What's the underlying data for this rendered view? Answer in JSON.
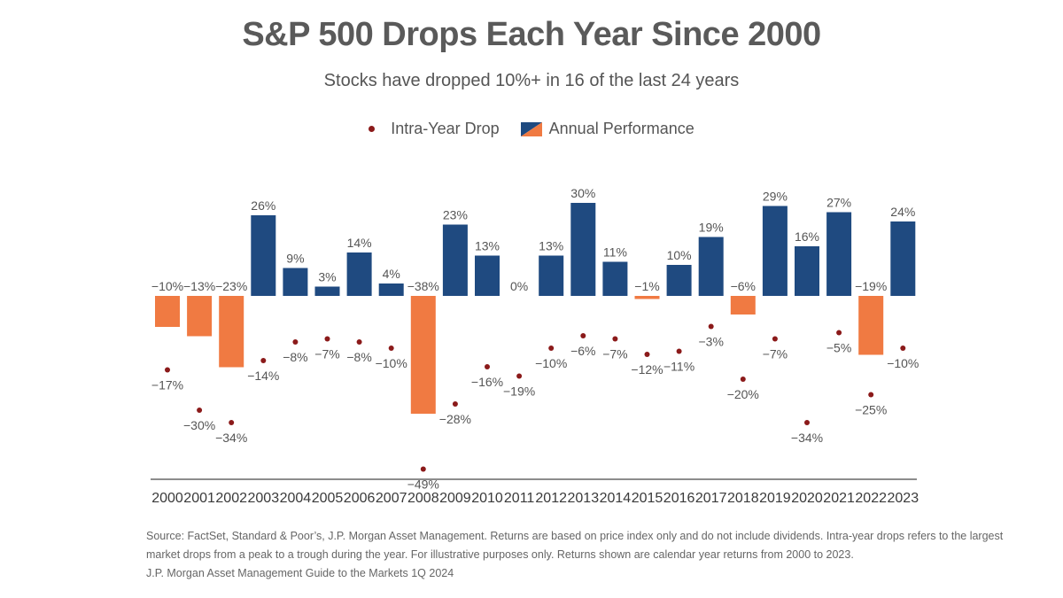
{
  "title": "S&P 500 Drops Each Year Since 2000",
  "subtitle": "Stocks have dropped 10%+ in 16 of the last 24 years",
  "legend": {
    "intra_year_drop": "Intra-Year Drop",
    "annual_performance": "Annual Performance"
  },
  "colors": {
    "positive_bar": "#1f4a80",
    "negative_bar": "#f07a42",
    "drop_dot": "#8b1a1a",
    "axis": "#666666",
    "text": "#555555"
  },
  "chart_data": {
    "type": "bar",
    "title": "S&P 500 Drops Each Year Since 2000",
    "subtitle": "Stocks have dropped 10%+ in 16 of the last 24 years",
    "categories": [
      "2000",
      "2001",
      "2002",
      "2003",
      "2004",
      "2005",
      "2006",
      "2007",
      "2008",
      "2009",
      "2010",
      "2011",
      "2012",
      "2013",
      "2014",
      "2015",
      "2016",
      "2017",
      "2018",
      "2019",
      "2020",
      "2021",
      "2022",
      "2023"
    ],
    "series": [
      {
        "name": "Annual Performance",
        "type": "bar",
        "values": [
          -10,
          -13,
          -23,
          26,
          9,
          3,
          14,
          4,
          -38,
          23,
          13,
          0,
          13,
          30,
          11,
          -1,
          10,
          19,
          -6,
          29,
          16,
          27,
          -19,
          24
        ],
        "labels": [
          "−10%",
          "−13%",
          "−23%",
          "26%",
          "9%",
          "3%",
          "14%",
          "4%",
          "−38%",
          "23%",
          "13%",
          "0%",
          "13%",
          "30%",
          "11%",
          "−1%",
          "10%",
          "19%",
          "−6%",
          "29%",
          "16%",
          "27%",
          "−19%",
          "24%"
        ]
      },
      {
        "name": "Intra-Year Drop",
        "type": "scatter",
        "values": [
          -17,
          -30,
          -34,
          -14,
          -8,
          -7,
          -8,
          -10,
          -49,
          -28,
          -16,
          -19,
          -10,
          -6,
          -7,
          -12,
          -11,
          -3,
          -20,
          -7,
          -34,
          -5,
          -25,
          -10
        ],
        "labels": [
          "−17%",
          "−30%",
          "−34%",
          "−14%",
          "−8%",
          "−7%",
          "−8%",
          "−10%",
          "−49%",
          "−28%",
          "−16%",
          "−19%",
          "−10%",
          "−6%",
          "−7%",
          "−12%",
          "−11%",
          "−3%",
          "−20%",
          "−7%",
          "−34%",
          "−5%",
          "−25%",
          "−10%"
        ]
      }
    ],
    "grid": false,
    "legend_position": "top-center"
  },
  "source": {
    "line1": "Source: FactSet, Standard & Poor’s, J.P. Morgan Asset Management. Returns are based on price index only and do not include dividends. Intra-year drops refers to the largest",
    "line2": "market drops from a peak to a trough during the year. For illustrative purposes only. Returns shown are calendar year returns from 2000 to 2023.",
    "line3": "J.P. Morgan Asset Management Guide to the Markets 1Q 2024"
  }
}
